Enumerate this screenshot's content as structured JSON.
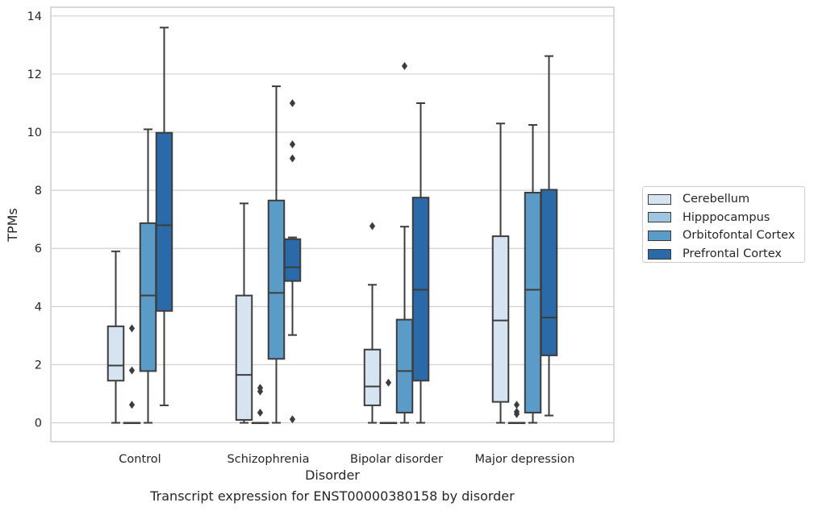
{
  "caption": "Transcript expression for ENST00000380158 by disorder",
  "chart_data": {
    "type": "box",
    "title": "",
    "xlabel": "Disorder",
    "ylabel": "TPMs",
    "categories": [
      "Control",
      "Schizophrenia",
      "Bipolar disorder",
      "Major depression"
    ],
    "ylim": [
      -0.65,
      14.3
    ],
    "yticks": [
      "0",
      "2",
      "4",
      "6",
      "8",
      "10",
      "12",
      "14"
    ],
    "grid": "horizontal",
    "legend_position": "right",
    "series": [
      {
        "name": "Cerebellum",
        "color": "#d6e4f2",
        "boxes": [
          {
            "whislo": 0.0,
            "q1": 1.45,
            "med": 1.97,
            "q3": 3.32,
            "whishi": 5.9,
            "fliers": []
          },
          {
            "whislo": 0.0,
            "q1": 0.1,
            "med": 1.65,
            "q3": 4.38,
            "whishi": 7.55,
            "fliers": []
          },
          {
            "whislo": 0.0,
            "q1": 0.6,
            "med": 1.25,
            "q3": 2.52,
            "whishi": 4.75,
            "fliers": [
              6.77
            ]
          },
          {
            "whislo": 0.0,
            "q1": 0.72,
            "med": 3.52,
            "q3": 6.42,
            "whishi": 10.3,
            "fliers": []
          }
        ]
      },
      {
        "name": "Hipppocampus",
        "color": "#9fc5e0",
        "boxes": [
          {
            "whislo": 0.0,
            "q1": 0.0,
            "med": 0.0,
            "q3": 0.0,
            "whishi": 0.0,
            "fliers": [
              3.25,
              1.8,
              0.62
            ]
          },
          {
            "whislo": 0.0,
            "q1": 0.0,
            "med": 0.0,
            "q3": 0.0,
            "whishi": 0.0,
            "fliers": [
              1.2,
              1.08,
              0.35
            ]
          },
          {
            "whislo": 0.0,
            "q1": 0.0,
            "med": 0.0,
            "q3": 0.0,
            "whishi": 0.0,
            "fliers": [
              1.38
            ]
          },
          {
            "whislo": 0.0,
            "q1": 0.0,
            "med": 0.0,
            "q3": 0.0,
            "whishi": 0.0,
            "fliers": [
              0.62,
              0.38,
              0.3
            ]
          }
        ]
      },
      {
        "name": "Orbitofontal Cortex",
        "color": "#5a9bc8",
        "boxes": [
          {
            "whislo": 0.0,
            "q1": 1.78,
            "med": 4.38,
            "q3": 6.87,
            "whishi": 10.1,
            "fliers": []
          },
          {
            "whislo": 0.0,
            "q1": 2.2,
            "med": 4.47,
            "q3": 7.65,
            "whishi": 11.58,
            "fliers": []
          },
          {
            "whislo": 0.0,
            "q1": 0.35,
            "med": 1.78,
            "q3": 3.55,
            "whishi": 6.75,
            "fliers": [
              12.28
            ]
          },
          {
            "whislo": 0.0,
            "q1": 0.35,
            "med": 4.58,
            "q3": 7.92,
            "whishi": 10.25,
            "fliers": []
          }
        ]
      },
      {
        "name": "Prefrontal Cortex",
        "color": "#2a6aa8",
        "boxes": [
          {
            "whislo": 0.6,
            "q1": 3.85,
            "med": 6.8,
            "q3": 9.98,
            "whishi": 13.6,
            "fliers": []
          },
          {
            "whislo": 3.02,
            "q1": 4.88,
            "med": 5.35,
            "q3": 6.32,
            "whishi": 6.38,
            "fliers": [
              11.0,
              9.58,
              9.1,
              0.12
            ]
          },
          {
            "whislo": 0.0,
            "q1": 1.45,
            "med": 4.58,
            "q3": 7.75,
            "whishi": 11.0,
            "fliers": []
          },
          {
            "whislo": 0.25,
            "q1": 2.32,
            "med": 3.62,
            "q3": 8.02,
            "whishi": 12.62,
            "fliers": []
          }
        ]
      }
    ]
  }
}
